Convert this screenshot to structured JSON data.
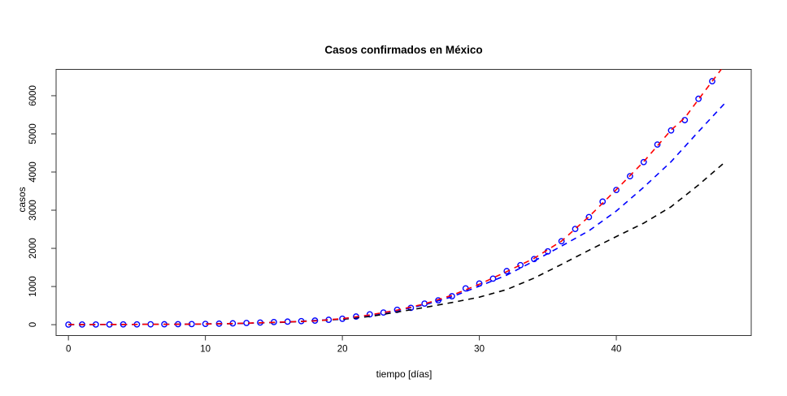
{
  "chart_data": {
    "type": "scatter",
    "title": "Casos confirmados en México",
    "xlabel": "tiempo [días]",
    "ylabel": "casos",
    "x_ticks": [
      0,
      10,
      20,
      30,
      40
    ],
    "y_ticks": [
      0,
      1000,
      2000,
      3000,
      4000,
      5000,
      6000
    ],
    "xlim": [
      -0.9,
      49.85
    ],
    "ylim": [
      -285,
      6690
    ],
    "grid": false,
    "legend": "none",
    "background_color": "#ffffff",
    "box_color": "#333333",
    "points_color": "#0000ff",
    "points_style": "open-circle",
    "points": {
      "x": [
        0,
        1,
        2,
        3,
        4,
        5,
        6,
        7,
        8,
        9,
        10,
        11,
        12,
        13,
        14,
        15,
        16,
        17,
        18,
        19,
        20,
        21,
        22,
        23,
        24,
        25,
        26,
        27,
        28,
        29,
        30,
        31,
        32,
        33,
        34,
        35,
        36,
        37,
        38,
        39,
        40,
        41,
        42,
        43,
        44,
        45,
        46,
        47
      ],
      "y": [
        2,
        4,
        5,
        6,
        7,
        8,
        9,
        11,
        13,
        16,
        21,
        27,
        35,
        45,
        56,
        68,
        80,
        93,
        107,
        128,
        155,
        213,
        270,
        319,
        389,
        440,
        553,
        638,
        745,
        950,
        1079,
        1206,
        1404,
        1560,
        1720,
        1920,
        2186,
        2509,
        2820,
        3225,
        3530,
        3890,
        4260,
        4720,
        5090,
        5360,
        5920,
        6380
      ]
    },
    "series": [
      {
        "name": "fit-black",
        "color": "#000000",
        "style": "dashed",
        "x": [
          0,
          4,
          8,
          12,
          16,
          20,
          22,
          24,
          26,
          28,
          30,
          32,
          34,
          36,
          38,
          40,
          42,
          44,
          46,
          48
        ],
        "y": [
          3,
          6,
          10,
          26,
          65,
          140,
          215,
          330,
          450,
          580,
          720,
          920,
          1220,
          1580,
          1950,
          2310,
          2660,
          3090,
          3660,
          4280
        ]
      },
      {
        "name": "fit-blue",
        "color": "#0000ff",
        "style": "dashed",
        "x": [
          0,
          4,
          8,
          12,
          16,
          20,
          22,
          24,
          26,
          28,
          30,
          32,
          34,
          36,
          38,
          40,
          42,
          44,
          46,
          48
        ],
        "y": [
          3,
          6,
          11,
          28,
          70,
          152,
          245,
          365,
          520,
          730,
          1010,
          1300,
          1670,
          2060,
          2460,
          2980,
          3600,
          4270,
          5060,
          5830
        ]
      },
      {
        "name": "fit-red",
        "color": "#ff0000",
        "style": "dashed",
        "x": [
          0,
          2,
          4,
          6,
          8,
          10,
          12,
          14,
          16,
          18,
          20,
          22,
          24,
          26,
          28,
          30,
          32,
          34,
          36,
          38,
          40,
          42,
          44,
          45,
          46,
          47,
          48
        ],
        "y": [
          3,
          5,
          6,
          8,
          11,
          18,
          30,
          50,
          72,
          100,
          158,
          255,
          380,
          545,
          770,
          1060,
          1390,
          1740,
          2190,
          2830,
          3540,
          4270,
          5100,
          5420,
          5900,
          6380,
          6850
        ]
      }
    ]
  }
}
